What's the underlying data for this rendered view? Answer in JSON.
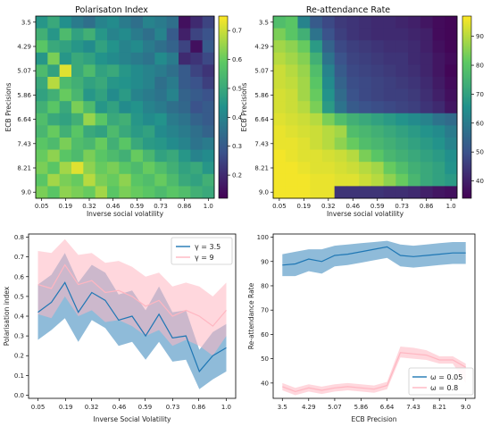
{
  "chart_data": [
    {
      "type": "heatmap",
      "title": "Polarisaton Index",
      "xlabel": "Inverse social volatility",
      "ylabel": "ECB Precisions",
      "x_ticks": [
        "0.05",
        "0.19",
        "0.32",
        "0.46",
        "0.59",
        "0.73",
        "0.86",
        "1.0"
      ],
      "y_ticks": [
        "3.5",
        "4.29",
        "5.07",
        "5.86",
        "6.64",
        "7.43",
        "8.21",
        "9.0"
      ],
      "grid_cols": 15,
      "grid_rows": 15,
      "colorbar": {
        "range": [
          0.12,
          0.75
        ],
        "ticks": [
          "0.2",
          "0.3",
          "0.4",
          "0.5",
          "0.6",
          "0.7"
        ]
      },
      "colormap": "viridis",
      "values": [
        [
          0.45,
          0.5,
          0.43,
          0.38,
          0.35,
          0.4,
          0.42,
          0.38,
          0.35,
          0.4,
          0.38,
          0.35,
          0.15,
          0.2,
          0.25
        ],
        [
          0.52,
          0.45,
          0.55,
          0.48,
          0.52,
          0.45,
          0.4,
          0.42,
          0.38,
          0.35,
          0.4,
          0.3,
          0.18,
          0.25,
          0.28
        ],
        [
          0.58,
          0.5,
          0.48,
          0.45,
          0.42,
          0.48,
          0.44,
          0.4,
          0.42,
          0.38,
          0.35,
          0.32,
          0.25,
          0.15,
          0.3
        ],
        [
          0.45,
          0.62,
          0.45,
          0.5,
          0.48,
          0.44,
          0.42,
          0.4,
          0.38,
          0.36,
          0.42,
          0.38,
          0.2,
          0.22,
          0.26
        ],
        [
          0.55,
          0.48,
          0.72,
          0.5,
          0.55,
          0.48,
          0.5,
          0.45,
          0.42,
          0.4,
          0.38,
          0.35,
          0.3,
          0.25,
          0.22
        ],
        [
          0.5,
          0.68,
          0.55,
          0.52,
          0.48,
          0.5,
          0.45,
          0.44,
          0.42,
          0.4,
          0.35,
          0.38,
          0.3,
          0.28,
          0.24
        ],
        [
          0.48,
          0.52,
          0.6,
          0.54,
          0.45,
          0.48,
          0.42,
          0.46,
          0.4,
          0.38,
          0.36,
          0.4,
          0.32,
          0.3,
          0.28
        ],
        [
          0.52,
          0.58,
          0.5,
          0.62,
          0.55,
          0.45,
          0.48,
          0.42,
          0.44,
          0.4,
          0.38,
          0.35,
          0.33,
          0.28,
          0.3
        ],
        [
          0.56,
          0.5,
          0.48,
          0.52,
          0.65,
          0.58,
          0.5,
          0.52,
          0.45,
          0.42,
          0.44,
          0.38,
          0.36,
          0.32,
          0.3
        ],
        [
          0.54,
          0.6,
          0.52,
          0.58,
          0.5,
          0.48,
          0.55,
          0.5,
          0.46,
          0.48,
          0.42,
          0.4,
          0.38,
          0.35,
          0.32
        ],
        [
          0.58,
          0.55,
          0.62,
          0.56,
          0.54,
          0.6,
          0.52,
          0.58,
          0.5,
          0.46,
          0.45,
          0.42,
          0.4,
          0.36,
          0.38
        ],
        [
          0.6,
          0.64,
          0.58,
          0.55,
          0.62,
          0.58,
          0.55,
          0.52,
          0.6,
          0.54,
          0.48,
          0.5,
          0.45,
          0.4,
          0.42
        ],
        [
          0.62,
          0.58,
          0.66,
          0.72,
          0.64,
          0.6,
          0.62,
          0.58,
          0.55,
          0.6,
          0.56,
          0.52,
          0.48,
          0.5,
          0.45
        ],
        [
          0.58,
          0.66,
          0.62,
          0.6,
          0.68,
          0.62,
          0.6,
          0.64,
          0.58,
          0.56,
          0.6,
          0.55,
          0.5,
          0.48,
          0.52
        ],
        [
          0.62,
          0.58,
          0.64,
          0.62,
          0.6,
          0.66,
          0.58,
          0.62,
          0.6,
          0.58,
          0.55,
          0.58,
          0.56,
          0.52,
          0.5
        ]
      ]
    },
    {
      "type": "heatmap",
      "title": "Re-attendance Rate",
      "xlabel": "Inverse social volatility",
      "ylabel": "ECB Precisions",
      "x_ticks": [
        "0.05",
        "0.19",
        "0.32",
        "0.46",
        "0.59",
        "0.73",
        "0.86",
        "1.0"
      ],
      "y_ticks": [
        "3.5",
        "4.29",
        "5.07",
        "5.86",
        "6.64",
        "7.43",
        "8.21",
        "9.0"
      ],
      "grid_cols": 15,
      "grid_rows": 15,
      "colorbar": {
        "range": [
          34,
          97
        ],
        "ticks": [
          "40",
          "50",
          "60",
          "70",
          "80",
          "90"
        ]
      },
      "colormap": "viridis",
      "values": [
        [
          78,
          80,
          62,
          52,
          48,
          45,
          44,
          43,
          42,
          42,
          41,
          40,
          38,
          36,
          35
        ],
        [
          84,
          80,
          74,
          58,
          50,
          46,
          44,
          43,
          42,
          42,
          42,
          41,
          40,
          36,
          35
        ],
        [
          88,
          86,
          82,
          68,
          54,
          48,
          46,
          45,
          44,
          43,
          43,
          42,
          40,
          37,
          35
        ],
        [
          90,
          88,
          85,
          74,
          58,
          50,
          47,
          46,
          45,
          44,
          44,
          42,
          41,
          38,
          36
        ],
        [
          92,
          90,
          87,
          78,
          62,
          52,
          48,
          47,
          46,
          45,
          44,
          43,
          41,
          38,
          35
        ],
        [
          92,
          91,
          88,
          80,
          64,
          54,
          49,
          48,
          47,
          46,
          45,
          44,
          42,
          39,
          36
        ],
        [
          93,
          92,
          88,
          82,
          66,
          56,
          50,
          48,
          47,
          46,
          46,
          45,
          43,
          40,
          37
        ],
        [
          93,
          92,
          90,
          84,
          68,
          58,
          52,
          50,
          49,
          48,
          47,
          46,
          44,
          42,
          38
        ],
        [
          94,
          93,
          92,
          90,
          84,
          78,
          74,
          72,
          70,
          68,
          66,
          64,
          62,
          58,
          56
        ],
        [
          95,
          94,
          93,
          92,
          90,
          88,
          78,
          76,
          74,
          72,
          70,
          68,
          66,
          64,
          60
        ],
        [
          95,
          95,
          94,
          92,
          90,
          86,
          82,
          78,
          76,
          74,
          72,
          70,
          68,
          66,
          62
        ],
        [
          96,
          95,
          94,
          94,
          93,
          92,
          90,
          84,
          80,
          76,
          74,
          72,
          70,
          68,
          65
        ],
        [
          96,
          96,
          95,
          94,
          94,
          93,
          92,
          90,
          88,
          82,
          78,
          74,
          72,
          70,
          66
        ],
        [
          96,
          96,
          96,
          95,
          95,
          94,
          94,
          92,
          90,
          86,
          82,
          76,
          72,
          70,
          68
        ],
        [
          96,
          96,
          96,
          95,
          95,
          44,
          44,
          44,
          44,
          43,
          43,
          42,
          40,
          38,
          37
        ]
      ]
    },
    {
      "type": "line",
      "title": "",
      "xlabel": "Inverse Social Volatility",
      "ylabel": "Polarisation index",
      "x": [
        0.05,
        0.1178,
        0.1857,
        0.2535,
        0.3214,
        0.3892,
        0.4571,
        0.525,
        0.5928,
        0.6607,
        0.7285,
        0.7964,
        0.8642,
        0.9321,
        1.0
      ],
      "x_ticks": [
        "0.05",
        "0.19",
        "0.32",
        "0.46",
        "0.59",
        "0.73",
        "0.86",
        "1.0"
      ],
      "ylim": [
        0.0,
        0.8
      ],
      "y_ticks": [
        "0.0",
        "0.1",
        "0.2",
        "0.3",
        "0.4",
        "0.5",
        "0.6",
        "0.7",
        "0.8"
      ],
      "legend_position": "top-right",
      "series": [
        {
          "name": "γ = 3.5",
          "color": "#1f77b4",
          "values": [
            0.42,
            0.47,
            0.57,
            0.42,
            0.52,
            0.48,
            0.38,
            0.4,
            0.3,
            0.41,
            0.29,
            0.3,
            0.12,
            0.2,
            0.24
          ],
          "lower": [
            0.28,
            0.33,
            0.39,
            0.27,
            0.38,
            0.34,
            0.25,
            0.27,
            0.18,
            0.27,
            0.17,
            0.18,
            0.03,
            0.08,
            0.12
          ],
          "upper": [
            0.56,
            0.61,
            0.72,
            0.57,
            0.66,
            0.62,
            0.51,
            0.53,
            0.43,
            0.55,
            0.42,
            0.43,
            0.23,
            0.32,
            0.36
          ]
        },
        {
          "name": "γ = 9",
          "color": "#ffb6c1",
          "values": [
            0.56,
            0.54,
            0.66,
            0.56,
            0.58,
            0.52,
            0.53,
            0.5,
            0.45,
            0.48,
            0.4,
            0.43,
            0.4,
            0.35,
            0.43
          ],
          "lower": [
            0.41,
            0.39,
            0.5,
            0.4,
            0.43,
            0.37,
            0.38,
            0.35,
            0.3,
            0.33,
            0.25,
            0.28,
            0.25,
            0.2,
            0.3
          ],
          "upper": [
            0.73,
            0.72,
            0.79,
            0.71,
            0.72,
            0.67,
            0.68,
            0.65,
            0.6,
            0.62,
            0.55,
            0.57,
            0.55,
            0.5,
            0.57
          ]
        }
      ]
    },
    {
      "type": "line",
      "title": "",
      "xlabel": "ECB Precision",
      "ylabel": "Re-attendance Rate",
      "x": [
        3.5,
        3.89,
        4.29,
        4.68,
        5.07,
        5.46,
        5.86,
        6.25,
        6.64,
        7.04,
        7.43,
        7.82,
        8.21,
        8.61,
        9.0
      ],
      "x_ticks": [
        "3.5",
        "4.29",
        "5.07",
        "5.86",
        "6.64",
        "7.43",
        "8.21",
        "9.0"
      ],
      "ylim": [
        35,
        100
      ],
      "y_ticks": [
        "40",
        "50",
        "60",
        "70",
        "80",
        "90",
        "100"
      ],
      "legend_position": "bottom-right",
      "series": [
        {
          "name": "ω = 0.05",
          "color": "#1f77b4",
          "values": [
            88.5,
            89,
            91,
            90,
            92.5,
            93,
            94,
            95,
            96,
            92.5,
            92,
            92.5,
            93,
            93.5,
            93.5
          ],
          "lower": [
            84,
            84,
            86,
            85,
            88,
            88.5,
            89.5,
            90.5,
            91.5,
            88,
            87.5,
            88,
            88.5,
            89,
            89
          ],
          "upper": [
            93,
            94,
            95,
            95,
            96.5,
            97,
            97.5,
            98,
            98.5,
            97,
            96.5,
            97,
            97.5,
            98,
            98
          ]
        },
        {
          "name": "ω = 0.8",
          "color": "#ffb6c1",
          "values": [
            38.5,
            36.5,
            38,
            37,
            38,
            38.5,
            38,
            37.5,
            39,
            52.5,
            52,
            51.5,
            49.5,
            49.5,
            46.5
          ],
          "lower": [
            37,
            35,
            36.5,
            35.5,
            36.5,
            37,
            36.5,
            36,
            37.5,
            50.5,
            50,
            49.5,
            48,
            48,
            40
          ],
          "upper": [
            40,
            38,
            39.5,
            38.5,
            39.5,
            40,
            39.5,
            39,
            40.5,
            55,
            54.5,
            53.5,
            51,
            51,
            48
          ]
        }
      ]
    }
  ]
}
